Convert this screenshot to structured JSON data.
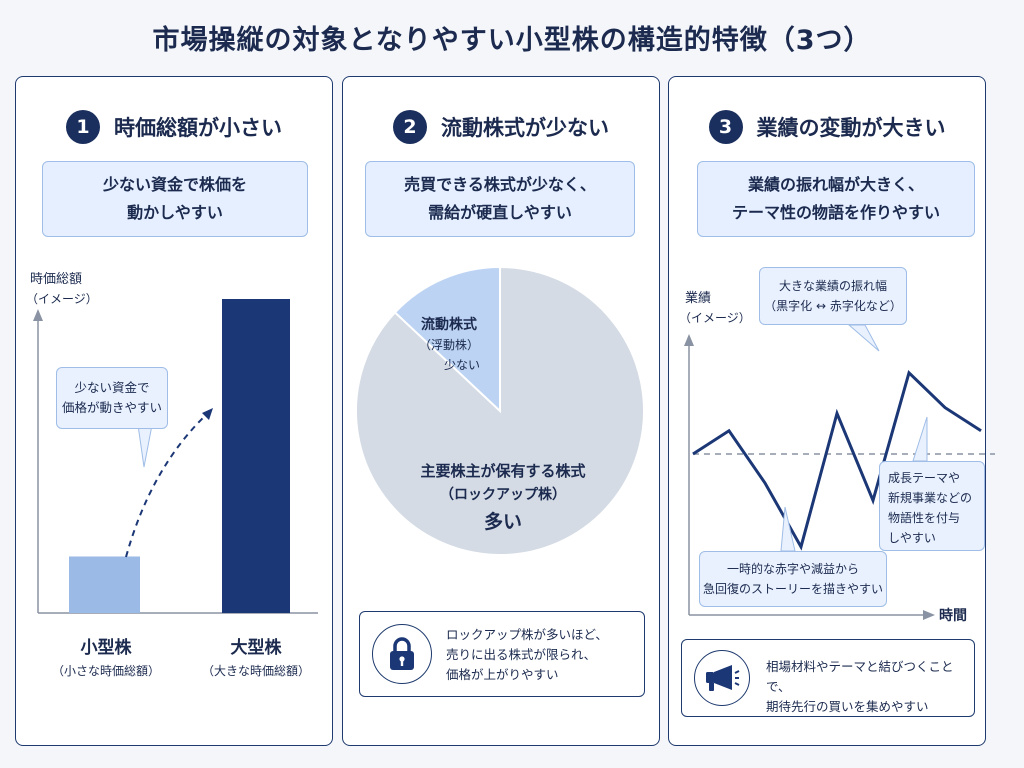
{
  "title": "市場操縦の対象となりやすい小型株の構造的特徴（3つ）",
  "panels": [
    {
      "number": "1",
      "title": "時価総額が小さい",
      "subtitle_lines": [
        "少ない資金で株価を",
        "動かしやすい"
      ],
      "ylabel": "時価総額",
      "ylabel_note": "（イメージ）",
      "callout_lines": [
        "少ない資金で",
        "価格が動きやすい"
      ],
      "bars": [
        {
          "label": "小型株",
          "note": "（小さな時価総額）",
          "value": 0.18,
          "color": "#9bbbe6"
        },
        {
          "label": "大型株",
          "note": "（大きな時価総額）",
          "value": 1.0,
          "color": "#1b3776"
        }
      ]
    },
    {
      "number": "2",
      "title": "流動株式が少ない",
      "subtitle_lines": [
        "売買できる株式が少なく、",
        "需給が硬直しやすい"
      ],
      "pie": {
        "slices": [
          {
            "label_lines": [
              "流動株式",
              "（浮動株）",
              "少ない"
            ],
            "fraction": 0.13,
            "color": "#bcd3f3"
          },
          {
            "label_lines": [
              "主要株主が保有する株式",
              "（ロックアップ株）",
              "多い"
            ],
            "fraction": 0.87,
            "color": "#d4dbe5"
          }
        ]
      },
      "bottom_icon": "lock-icon",
      "bottom_lines": [
        "ロックアップ株が多いほど、",
        "売りに出る株式が限られ、",
        "価格が上がりやすい"
      ]
    },
    {
      "number": "3",
      "title": "業績の変動が大きい",
      "subtitle_lines": [
        "業績の振れ幅が大きく、",
        "テーマ性の物語を作りやすい"
      ],
      "ylabel": "業績",
      "ylabel_note": "（イメージ）",
      "xlabel": "時間",
      "callout_top_lines": [
        "大きな業績の振れ幅",
        "（黒字化 ↔ 赤字化など）"
      ],
      "callout_right_lines": [
        "成長テーマや",
        "新規事業などの",
        "物語性を付与",
        "しやすい"
      ],
      "callout_bottom_lines": [
        "一時的な赤字や減益から",
        "急回復のストーリーを描きやすい"
      ],
      "line_values": [
        0,
        0.4,
        -0.5,
        -1.6,
        0.7,
        -0.8,
        1.4,
        0.8,
        0.4
      ],
      "bottom_icon": "megaphone-icon",
      "bottom_lines": [
        "相場材料やテーマと結びつくことで、",
        "期待先行の買いを集めやすい"
      ]
    }
  ]
}
